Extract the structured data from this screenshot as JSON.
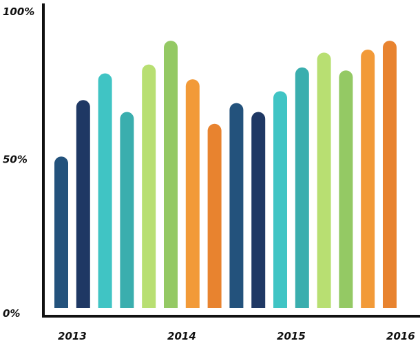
{
  "chart_data": {
    "type": "bar",
    "title": "",
    "xlabel": "",
    "ylabel": "",
    "ylim": [
      0,
      100
    ],
    "y_ticks": [
      "0%",
      "50%",
      "100%"
    ],
    "y_tick_values": [
      0,
      50,
      100
    ],
    "x_labels": [
      "2013",
      "2014",
      "2015",
      "2016"
    ],
    "x_label_bar_index": [
      0.5,
      5.5,
      10.5,
      15.5
    ],
    "grid": false,
    "legend": "none",
    "bars": [
      {
        "value": 51,
        "color": "#23527c"
      },
      {
        "value": 70,
        "color": "#1f3864"
      },
      {
        "value": 79,
        "color": "#40c4c4"
      },
      {
        "value": 66,
        "color": "#3aaeae"
      },
      {
        "value": 82,
        "color": "#b8df72"
      },
      {
        "value": 90,
        "color": "#94c964"
      },
      {
        "value": 77,
        "color": "#f29a38"
      },
      {
        "value": 62,
        "color": "#e8832f"
      },
      {
        "value": 69,
        "color": "#23527c"
      },
      {
        "value": 66,
        "color": "#1f3864"
      },
      {
        "value": 73,
        "color": "#40c4c4"
      },
      {
        "value": 81,
        "color": "#3aaeae"
      },
      {
        "value": 86,
        "color": "#b8df72"
      },
      {
        "value": 80,
        "color": "#94c964"
      },
      {
        "value": 87,
        "color": "#f29a38"
      },
      {
        "value": 90,
        "color": "#e8832f"
      }
    ]
  }
}
